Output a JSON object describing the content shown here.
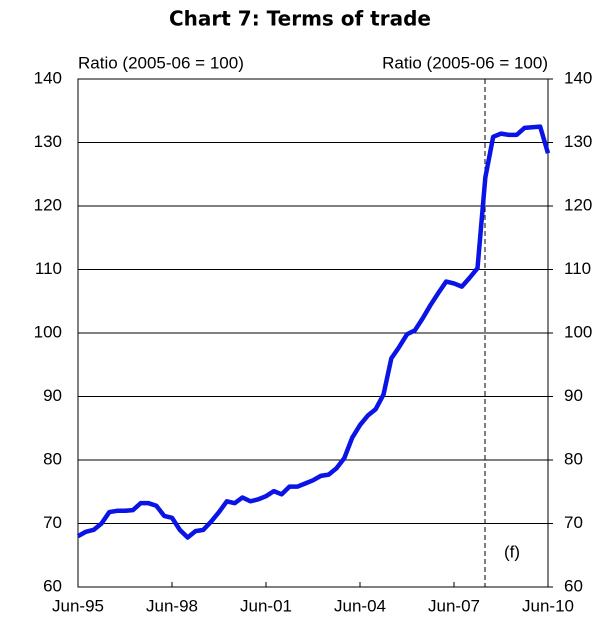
{
  "chart_data": {
    "type": "line",
    "title": "Chart 7: Terms of trade",
    "y_label": "Ratio (2005-06 = 100)",
    "y2_label": "Ratio (2005-06 = 100)",
    "annotation": "(f)",
    "categories": [
      "Jun-95",
      null,
      null,
      null,
      null,
      null,
      null,
      null,
      null,
      null,
      null,
      null,
      "Jun-98",
      null,
      null,
      null,
      null,
      null,
      null,
      null,
      null,
      null,
      null,
      null,
      "Jun-01",
      null,
      null,
      null,
      null,
      null,
      null,
      null,
      null,
      null,
      null,
      null,
      "Jun-04",
      null,
      null,
      null,
      null,
      null,
      null,
      null,
      null,
      null,
      null,
      null,
      "Jun-07",
      null,
      null,
      null,
      null,
      null,
      null,
      null,
      null,
      null,
      null,
      null,
      "Jun-10"
    ],
    "series": [
      {
        "color": "#0a14e6",
        "values": [
          68.0,
          68.7,
          69.0,
          70.0,
          71.8,
          72.0,
          72.0,
          72.1,
          73.2,
          73.2,
          72.8,
          71.2,
          70.9,
          69.0,
          67.8,
          68.8,
          69.0,
          70.3,
          71.8,
          73.5,
          73.2,
          74.1,
          73.5,
          73.8,
          74.3,
          75.1,
          74.6,
          75.8,
          75.8,
          76.3,
          76.8,
          77.5,
          77.7,
          78.7,
          80.3,
          83.5,
          85.5,
          87.0,
          88.0,
          90.3,
          96.0,
          97.8,
          99.8,
          100.4,
          102.3,
          104.4,
          106.3,
          108.1,
          107.8,
          107.3,
          108.7,
          110.2,
          124.5,
          130.9,
          131.4,
          131.2,
          131.2,
          132.3,
          132.4,
          132.5,
          128.3
        ]
      }
    ],
    "ylim": [
      60,
      140
    ],
    "yticks": [
      60,
      70,
      80,
      90,
      100,
      110,
      120,
      130,
      140
    ],
    "y2lim": [
      60,
      140
    ],
    "y2ticks": [
      60,
      70,
      80,
      90,
      100,
      110,
      120,
      130,
      140
    ],
    "grid": true
  }
}
